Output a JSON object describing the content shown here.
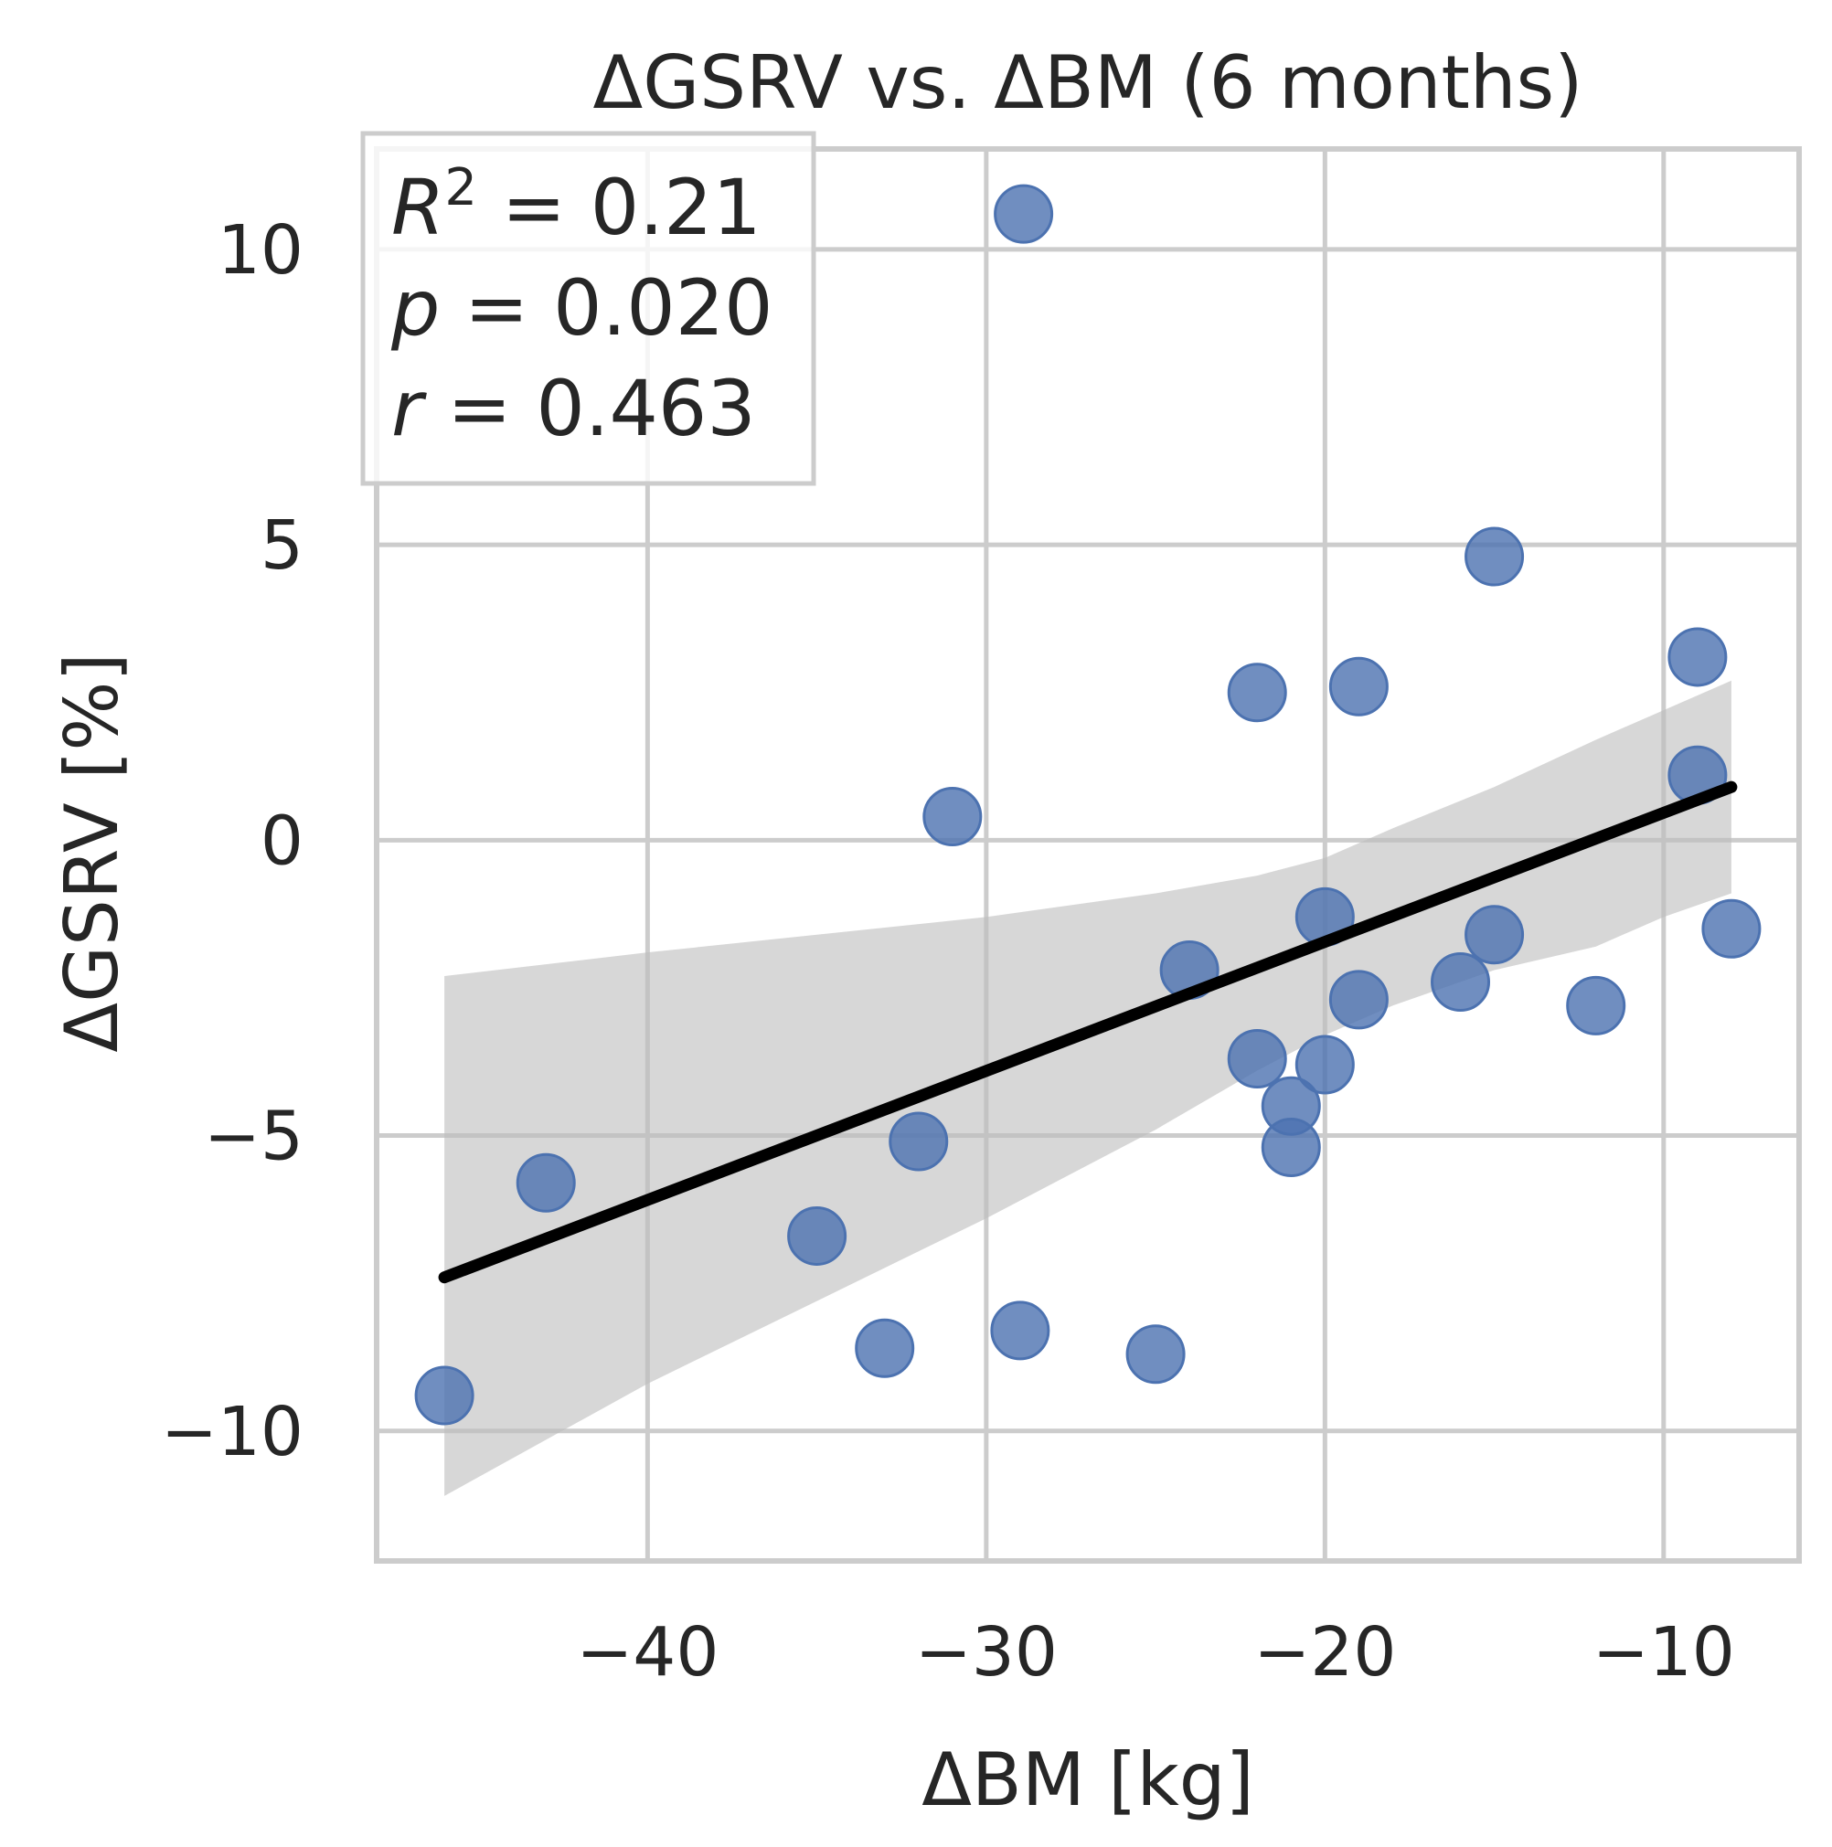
{
  "chart_data": {
    "type": "scatter",
    "title": "ΔGSRV vs. ΔBM (6 months)",
    "xlabel": "ΔBM [kg]",
    "ylabel": "ΔGSRV [%]",
    "xlim": [
      -48,
      -6
    ],
    "ylim": [
      -12.2,
      11.7
    ],
    "xticks": [
      -40,
      -30,
      -20,
      -10
    ],
    "xtick_labels": [
      "−40",
      "−30",
      "−20",
      "−10"
    ],
    "yticks": [
      -10,
      -5,
      0,
      5,
      10
    ],
    "ytick_labels": [
      "−10",
      "−5",
      "0",
      "5",
      "10"
    ],
    "grid": true,
    "stats": {
      "r2_var": "R",
      "r2_sup": "2",
      "r2_value": " = 0.21",
      "p_var": "p",
      "p_value": " = 0.020",
      "r_var": "r",
      "r_value": " = 0.463"
    },
    "series": [
      {
        "name": "participants",
        "color": "#4c72b0",
        "x": [
          -28.9,
          -15,
          -9,
          -22,
          -19,
          -9,
          -31,
          -20,
          -15,
          -8,
          -24,
          -19,
          -16,
          -12,
          -22,
          -20,
          -21,
          -21,
          -32,
          -43,
          -35,
          -33,
          -29,
          -25,
          -46
        ],
        "y": [
          10.6,
          4.8,
          3.1,
          2.5,
          2.6,
          1.1,
          0.4,
          -1.3,
          -1.6,
          -1.5,
          -2.2,
          -2.7,
          -2.4,
          -2.8,
          -3.7,
          -3.8,
          -4.5,
          -5.2,
          -5.1,
          -5.8,
          -6.7,
          -8.6,
          -8.3,
          -8.7,
          -9.4
        ]
      }
    ],
    "regression": {
      "color": "#000000",
      "x": [
        -46,
        -8
      ],
      "y": [
        -7.4,
        0.9
      ]
    },
    "confidence_band": {
      "color": "#bdbdbd",
      "x": [
        -46,
        -40,
        -35,
        -30,
        -25,
        -22,
        -20,
        -18,
        -15,
        -12,
        -10,
        -8
      ],
      "upper": [
        -2.3,
        -1.9,
        -1.6,
        -1.3,
        -0.9,
        -0.6,
        -0.3,
        0.2,
        0.9,
        1.7,
        2.2,
        2.7
      ],
      "lower": [
        -11.1,
        -9.2,
        -7.8,
        -6.4,
        -4.9,
        -3.9,
        -3.3,
        -2.8,
        -2.2,
        -1.8,
        -1.3,
        -0.9
      ]
    }
  }
}
